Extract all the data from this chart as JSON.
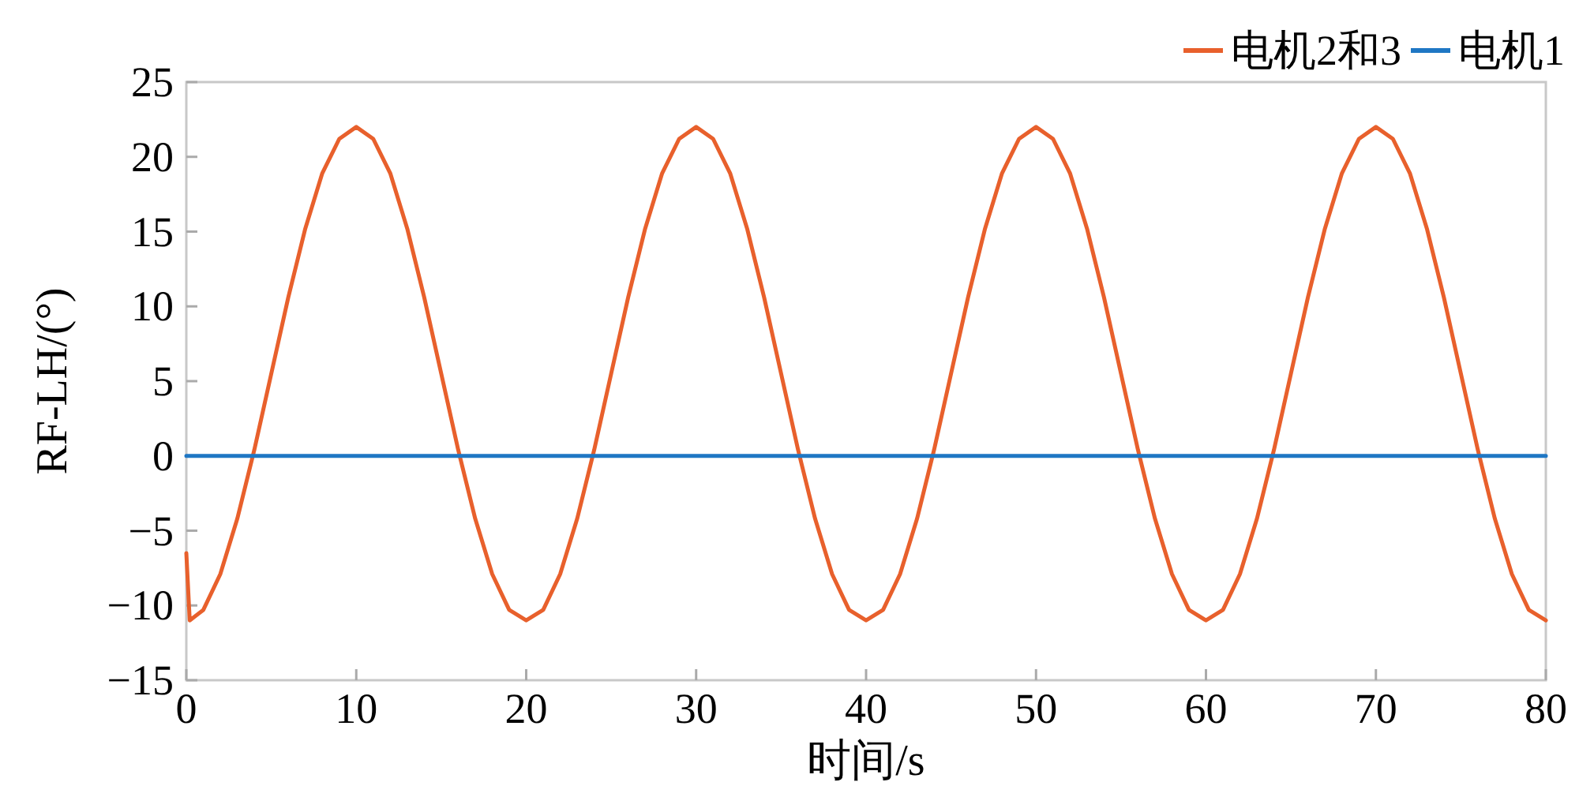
{
  "chart_data": {
    "type": "line",
    "xlabel": "时间/s",
    "ylabel": "RF-LH/(°)",
    "xlim": [
      0,
      80
    ],
    "ylim": [
      -15,
      25
    ],
    "xticks": [
      0,
      10,
      20,
      30,
      40,
      50,
      60,
      70,
      80
    ],
    "yticks": [
      {
        "value": -15,
        "label": "−15"
      },
      {
        "value": -10,
        "label": "−10"
      },
      {
        "value": -5,
        "label": "−5"
      },
      0,
      5,
      10,
      15,
      20,
      25
    ],
    "grid": false,
    "legend": "top right",
    "marker": "none",
    "line_style": "solid",
    "series": [
      {
        "name": "电机2和3",
        "color": "#e8602c",
        "x": [
          0,
          0.2,
          1,
          2,
          3,
          4,
          5,
          6,
          7,
          8,
          9,
          10,
          11,
          12,
          13,
          14,
          15,
          16,
          17,
          18,
          19,
          20,
          21,
          22,
          23,
          24,
          25,
          26,
          27,
          28,
          29,
          30,
          31,
          32,
          33,
          34,
          35,
          36,
          37,
          38,
          39,
          40,
          41,
          42,
          43,
          44,
          45,
          46,
          47,
          48,
          49,
          50,
          51,
          52,
          53,
          54,
          55,
          56,
          57,
          58,
          59,
          60,
          61,
          62,
          63,
          64,
          65,
          66,
          67,
          68,
          69,
          70,
          71,
          72,
          73,
          74,
          75,
          76,
          77,
          78,
          79,
          80
        ],
        "values": [
          -6.5,
          -11,
          -10.3,
          -7.9,
          -4.2,
          0.4,
          5.5,
          10.6,
          15.2,
          18.9,
          21.2,
          22,
          21.2,
          18.9,
          15.2,
          10.6,
          5.5,
          0.4,
          -4.2,
          -7.9,
          -10.3,
          -11,
          -10.3,
          -7.9,
          -4.2,
          0.4,
          5.5,
          10.6,
          15.2,
          18.9,
          21.2,
          22,
          21.2,
          18.9,
          15.2,
          10.6,
          5.5,
          0.4,
          -4.2,
          -7.9,
          -10.3,
          -11,
          -10.3,
          -7.9,
          -4.2,
          0.4,
          5.5,
          10.6,
          15.2,
          18.9,
          21.2,
          22,
          21.2,
          18.9,
          15.2,
          10.6,
          5.5,
          0.4,
          -4.2,
          -7.9,
          -10.3,
          -11,
          -10.3,
          -7.9,
          -4.2,
          0.4,
          5.5,
          10.6,
          15.2,
          18.9,
          21.2,
          22,
          21.2,
          18.9,
          15.2,
          10.6,
          5.5,
          0.4,
          -4.2,
          -7.9,
          -10.3,
          -11
        ]
      },
      {
        "name": "电机1",
        "color": "#1f77c4",
        "x": [
          0,
          80
        ],
        "values": [
          0,
          0
        ]
      }
    ]
  }
}
